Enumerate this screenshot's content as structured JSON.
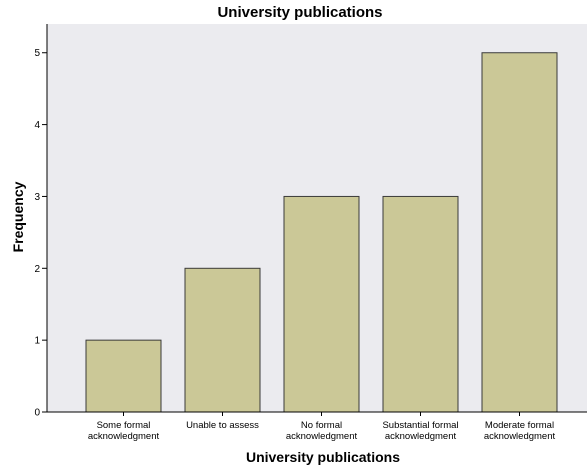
{
  "chart_data": {
    "type": "bar",
    "title": "University publications",
    "xlabel": "University publications",
    "ylabel": "Frequency",
    "categories": [
      [
        "Some formal",
        "acknowledgment"
      ],
      [
        "Unable to assess"
      ],
      [
        "No formal",
        "acknowledgment"
      ],
      [
        "Substantial formal",
        "acknowledgment"
      ],
      [
        "Moderate formal",
        "acknowledgment"
      ]
    ],
    "values": [
      1,
      2,
      3,
      3,
      5
    ],
    "ylim": [
      0,
      5.4
    ],
    "yticks": [
      0,
      1,
      2,
      3,
      4,
      5
    ],
    "grid": false,
    "legend": false,
    "colors": {
      "plot_background": "#ebebef",
      "bar_fill": "#cbc897",
      "bar_stroke": "#3a3a3a",
      "axis": "#000000"
    }
  }
}
